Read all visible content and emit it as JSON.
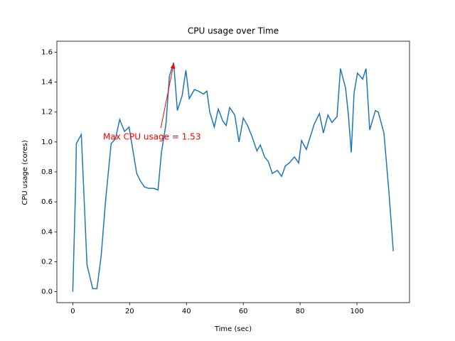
{
  "chart_data": {
    "type": "line",
    "title": "CPU usage over Time",
    "xlabel": "Time (sec)",
    "ylabel": "CPU usage (cores)",
    "annotation": "Max CPU usage = 1.53",
    "x": [
      0,
      1,
      1.25,
      3,
      5,
      7,
      8.5,
      10,
      11.5,
      13.5,
      15,
      16.5,
      18.2,
      19.8,
      21.2,
      22.5,
      23.8,
      25.2,
      26.8,
      28.5,
      30,
      31.2,
      32.8,
      34,
      35.5,
      36.8,
      38.5,
      39.8,
      41,
      42.8,
      44.2,
      46,
      47.2,
      48.2,
      49.8,
      51.2,
      52.8,
      54,
      55.2,
      57,
      58.5,
      60,
      61.5,
      63,
      64.8,
      66,
      67.5,
      68.8,
      70.2,
      72,
      73.5,
      74.8,
      76.2,
      78,
      79.5,
      80.5,
      82.2,
      83.5,
      85,
      86.8,
      88.2,
      89.8,
      91.2,
      93,
      94.2,
      96,
      97,
      98,
      99,
      100.2,
      102,
      103.2,
      104.5,
      106.5,
      107.5,
      109.5,
      111.2,
      112.8
    ],
    "values": [
      0,
      0.71,
      0.99,
      1.05,
      0.18,
      0.02,
      0.02,
      0.24,
      0.6,
      0.99,
      1.02,
      1.15,
      1.07,
      1.1,
      0.94,
      0.79,
      0.74,
      0.7,
      0.69,
      0.69,
      0.68,
      0.93,
      1.12,
      1.44,
      1.53,
      1.21,
      1.31,
      1.48,
      1.29,
      1.35,
      1.34,
      1.32,
      1.34,
      1.2,
      1.1,
      1.22,
      1.14,
      1.11,
      1.23,
      1.18,
      1.0,
      1.16,
      1.11,
      1.04,
      0.94,
      0.98,
      0.9,
      0.87,
      0.79,
      0.81,
      0.77,
      0.84,
      0.86,
      0.9,
      0.86,
      1.01,
      0.95,
      1.03,
      1.12,
      1.19,
      1.06,
      1.18,
      1.13,
      1.17,
      1.49,
      1.36,
      1.18,
      0.93,
      1.33,
      1.46,
      1.42,
      1.49,
      1.08,
      1.21,
      1.2,
      1.06,
      0.68,
      0.27
    ],
    "color": "#1f77b4",
    "xlim": [
      -5.6,
      118.5
    ],
    "ylim": [
      -0.073,
      1.673
    ],
    "xticks": [
      0,
      20,
      40,
      60,
      80,
      100
    ],
    "yticks": [
      {
        "value": 0,
        "label": "0.0"
      },
      {
        "value": 0.2,
        "label": "0.2"
      },
      {
        "value": 0.4,
        "label": "0.4"
      },
      {
        "value": 0.6,
        "label": "0.6"
      },
      {
        "value": 0.8,
        "label": "0.8"
      },
      {
        "value": 1,
        "label": "1.0"
      },
      {
        "value": 1.2,
        "label": "1.2"
      },
      {
        "value": 1.4,
        "label": "1.4"
      },
      {
        "value": 1.6,
        "label": "1.6"
      }
    ]
  }
}
